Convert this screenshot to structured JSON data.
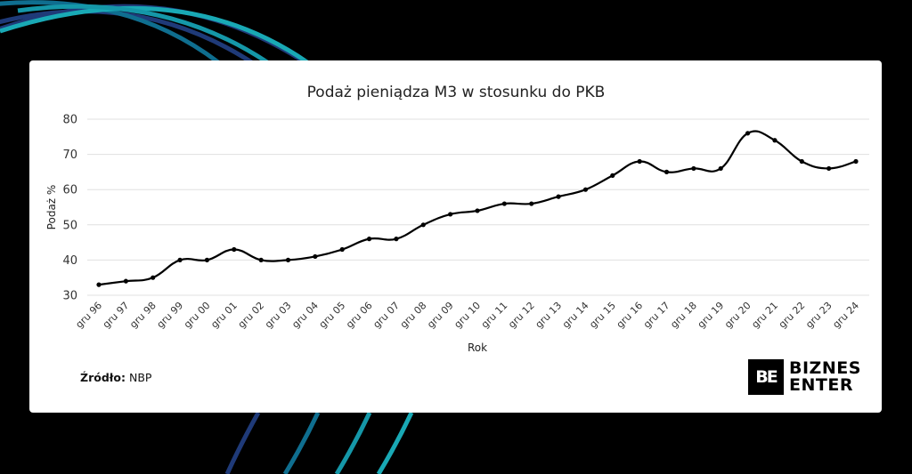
{
  "title": "Podaż pieniądza M3 w stosunku do PKB",
  "source": {
    "label": "Źródło:",
    "value": "NBP"
  },
  "logo": {
    "mark": "BE",
    "line1": "BIZNES",
    "line2": "ENTER"
  },
  "colors": {
    "background": "#000000",
    "card": "#ffffff",
    "line": "#000000",
    "grid": "#e0e0e0",
    "arc1": "#1f3a78",
    "arc2": "#0f6e8f",
    "arc3": "#1597a8",
    "arc4": "#19a9b5"
  },
  "chart_data": {
    "type": "line",
    "title": "Podaż pieniądza M3 w stosunku do PKB",
    "xlabel": "Rok",
    "ylabel": "Podaż %",
    "ylim": [
      30,
      80
    ],
    "yticks": [
      30,
      40,
      50,
      60,
      70,
      80
    ],
    "grid": true,
    "legend": "none",
    "categories": [
      "gru 96",
      "gru 97",
      "gru 98",
      "gru 99",
      "gru 00",
      "gru 01",
      "gru 02",
      "gru 03",
      "gru 04",
      "gru 05",
      "gru 06",
      "gru 07",
      "gru 08",
      "gru 09",
      "gru 10",
      "gru 11",
      "gru 12",
      "gru 13",
      "gru 14",
      "gru 15",
      "gru 16",
      "gru 17",
      "gru 18",
      "gru 19",
      "gru 20",
      "gru 21",
      "gru 22",
      "gru 23",
      "gru 24"
    ],
    "values": [
      33,
      34,
      35,
      40,
      40,
      43,
      40,
      40,
      41,
      43,
      46,
      46,
      50,
      53,
      54,
      56,
      56,
      58,
      60,
      64,
      68,
      65,
      66,
      66,
      76,
      74,
      68,
      66,
      68
    ]
  }
}
